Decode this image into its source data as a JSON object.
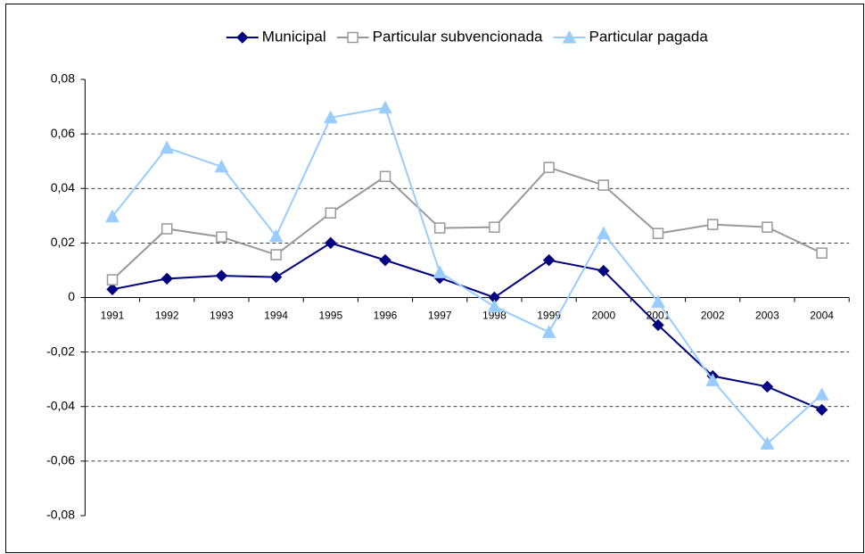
{
  "chart_data": {
    "type": "line",
    "categories": [
      "1991",
      "1992",
      "1993",
      "1994",
      "1995",
      "1996",
      "1997",
      "1998",
      "1999",
      "2000",
      "2001",
      "2002",
      "2003",
      "2004"
    ],
    "series": [
      {
        "name": "Municipal",
        "color": "#000080",
        "marker": "diamond",
        "values": [
          0.003,
          0.0069,
          0.008,
          0.0075,
          0.02,
          0.0137,
          0.0072,
          0,
          0.0137,
          0.0098,
          -0.0101,
          -0.0288,
          -0.0327,
          -0.0412
        ]
      },
      {
        "name": "Particular subvencionada",
        "color": "#999999",
        "marker": "square",
        "values": [
          0.0065,
          0.0252,
          0.0222,
          0.0157,
          0.031,
          0.0444,
          0.0255,
          0.0258,
          0.0477,
          0.0412,
          0.0235,
          0.0268,
          0.0258,
          0.0163
        ]
      },
      {
        "name": "Particular pagada",
        "color": "#99ccff",
        "marker": "triangle",
        "values": [
          0.0297,
          0.0549,
          0.048,
          0.0225,
          0.066,
          0.0696,
          0.0092,
          -0.0033,
          -0.0127,
          0.0235,
          -0.0016,
          -0.0304,
          -0.0536,
          -0.0356
        ]
      }
    ],
    "ylim": [
      -0.08,
      0.08
    ],
    "yticks": [
      {
        "value": -0.08,
        "label": "-0,08"
      },
      {
        "value": -0.06,
        "label": "-0,06"
      },
      {
        "value": -0.04,
        "label": "-0,04"
      },
      {
        "value": -0.02,
        "label": "-0,02"
      },
      0,
      {
        "value": 0.02,
        "label": "0,02"
      },
      {
        "value": 0.04,
        "label": "0,04"
      },
      {
        "value": 0.06,
        "label": "0,06"
      },
      {
        "value": 0.08,
        "label": "0,08"
      }
    ],
    "grid": true,
    "legend": "top"
  }
}
